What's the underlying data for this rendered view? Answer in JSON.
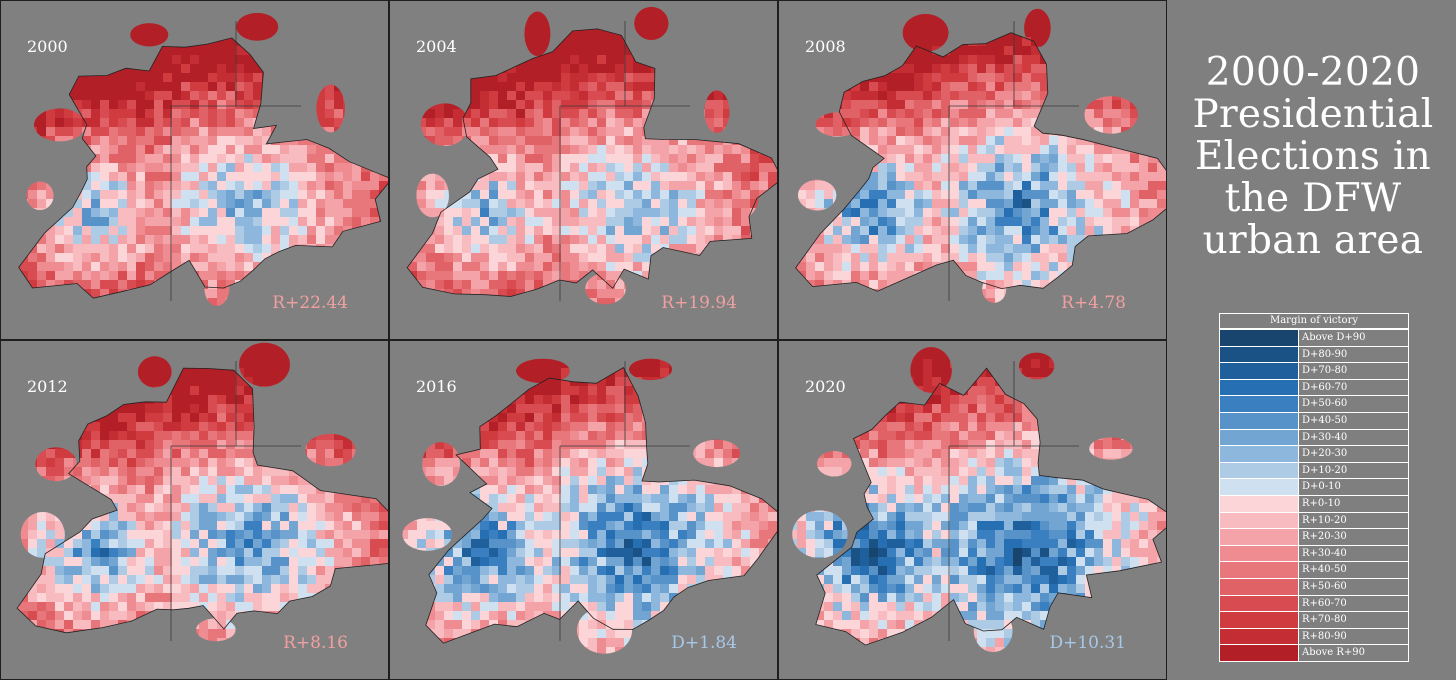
{
  "title_lines": [
    "2000-2020",
    "Presidential",
    "Elections in",
    "the DFW",
    "urban area"
  ],
  "panels": [
    {
      "year": "2000",
      "margin": "R+22.44",
      "margin_color": "#f0a0a0",
      "blue_share": 0.22
    },
    {
      "year": "2004",
      "margin": "R+19.94",
      "margin_color": "#f0a0a0",
      "blue_share": 0.26
    },
    {
      "year": "2008",
      "margin": "R+4.78",
      "margin_color": "#f0a0a0",
      "blue_share": 0.42
    },
    {
      "year": "2012",
      "margin": "R+8.16",
      "margin_color": "#f0a0a0",
      "blue_share": 0.38
    },
    {
      "year": "2016",
      "margin": "D+1.84",
      "margin_color": "#a8c8e8",
      "blue_share": 0.52
    },
    {
      "year": "2020",
      "margin": "D+10.31",
      "margin_color": "#a8c8e8",
      "blue_share": 0.62
    }
  ],
  "legend": {
    "title": "Margin of victory",
    "items": [
      {
        "label": "Above D+90",
        "color": "#17456e"
      },
      {
        "label": "D+80-90",
        "color": "#1b5286"
      },
      {
        "label": "D+70-80",
        "color": "#1f5f9c"
      },
      {
        "label": "D+60-70",
        "color": "#276fb3"
      },
      {
        "label": "D+50-60",
        "color": "#3a80c0"
      },
      {
        "label": "D+40-50",
        "color": "#5793c9"
      },
      {
        "label": "D+30-40",
        "color": "#72a5d2"
      },
      {
        "label": "D+20-30",
        "color": "#8db7dc"
      },
      {
        "label": "D+10-20",
        "color": "#aecbe6"
      },
      {
        "label": "D+0-10",
        "color": "#cfe0f1"
      },
      {
        "label": "R+0-10",
        "color": "#fbd5d8"
      },
      {
        "label": "R+10-20",
        "color": "#f8bcc0"
      },
      {
        "label": "R+20-30",
        "color": "#f4a4a8"
      },
      {
        "label": "R+30-40",
        "color": "#ef8c91"
      },
      {
        "label": "R+40-50",
        "color": "#e8777c"
      },
      {
        "label": "R+50-60",
        "color": "#e06166"
      },
      {
        "label": "R+60-70",
        "color": "#d84c51"
      },
      {
        "label": "R+70-80",
        "color": "#d03b40"
      },
      {
        "label": "R+80-90",
        "color": "#c42d33"
      },
      {
        "label": "Above R+90",
        "color": "#b31f27"
      }
    ]
  }
}
